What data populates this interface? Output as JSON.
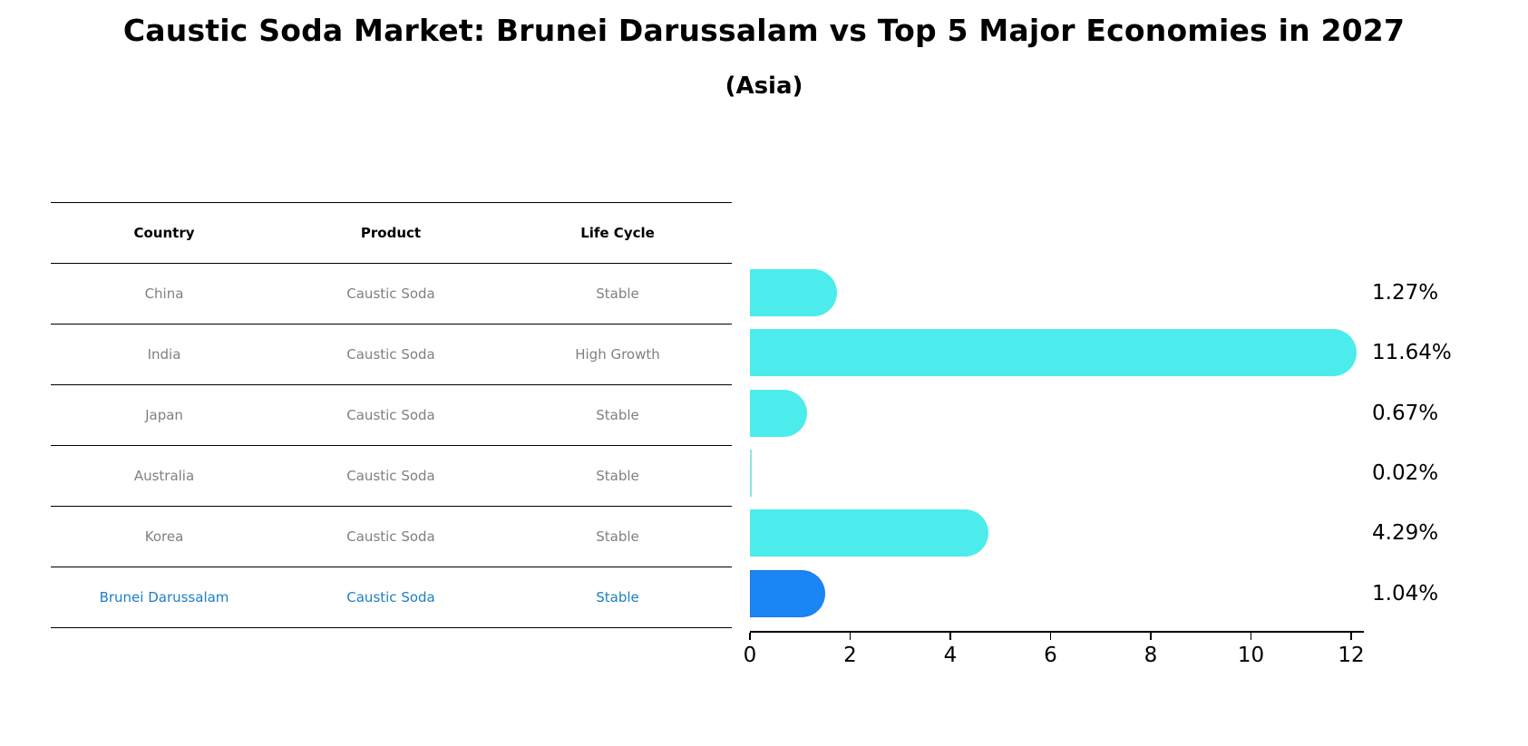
{
  "title": "Caustic Soda Market: Brunei Darussalam vs Top 5 Major Economies in 2027",
  "subtitle": "(Asia)",
  "table": {
    "headers": [
      "Country",
      "Product",
      "Life Cycle"
    ],
    "rows": [
      {
        "country": "China",
        "product": "Caustic Soda",
        "life_cycle": "Stable"
      },
      {
        "country": "India",
        "product": "Caustic Soda",
        "life_cycle": "High Growth"
      },
      {
        "country": "Japan",
        "product": "Caustic Soda",
        "life_cycle": "Stable"
      },
      {
        "country": "Australia",
        "product": "Caustic Soda",
        "life_cycle": "Stable"
      },
      {
        "country": "Korea",
        "product": "Caustic Soda",
        "life_cycle": "Stable"
      },
      {
        "country": "Brunei Darussalam",
        "product": "Caustic Soda",
        "life_cycle": "Stable"
      }
    ]
  },
  "colors": {
    "bar": "#4cecec",
    "highlight_bar": "#1a85f5",
    "highlight_text": "#1f7fc2",
    "muted_text": "#808080"
  },
  "chart_data": {
    "type": "bar",
    "orientation": "horizontal",
    "title": "Caustic Soda Market: Brunei Darussalam vs Top 5 Major Economies in 2027",
    "subtitle": "(Asia)",
    "categories": [
      "China",
      "India",
      "Japan",
      "Australia",
      "Korea",
      "Brunei Darussalam"
    ],
    "values": [
      1.27,
      11.64,
      0.67,
      0.02,
      4.29,
      1.04
    ],
    "value_labels": [
      "1.27%",
      "11.64%",
      "0.67%",
      "0.02%",
      "4.29%",
      "1.04%"
    ],
    "highlight": "Brunei Darussalam",
    "xlabel": "",
    "ylabel": "",
    "xlim": [
      0,
      12.2
    ],
    "xticks": [
      "0",
      "2",
      "4",
      "6",
      "8",
      "10",
      "12"
    ],
    "grid": false,
    "legend": null
  }
}
